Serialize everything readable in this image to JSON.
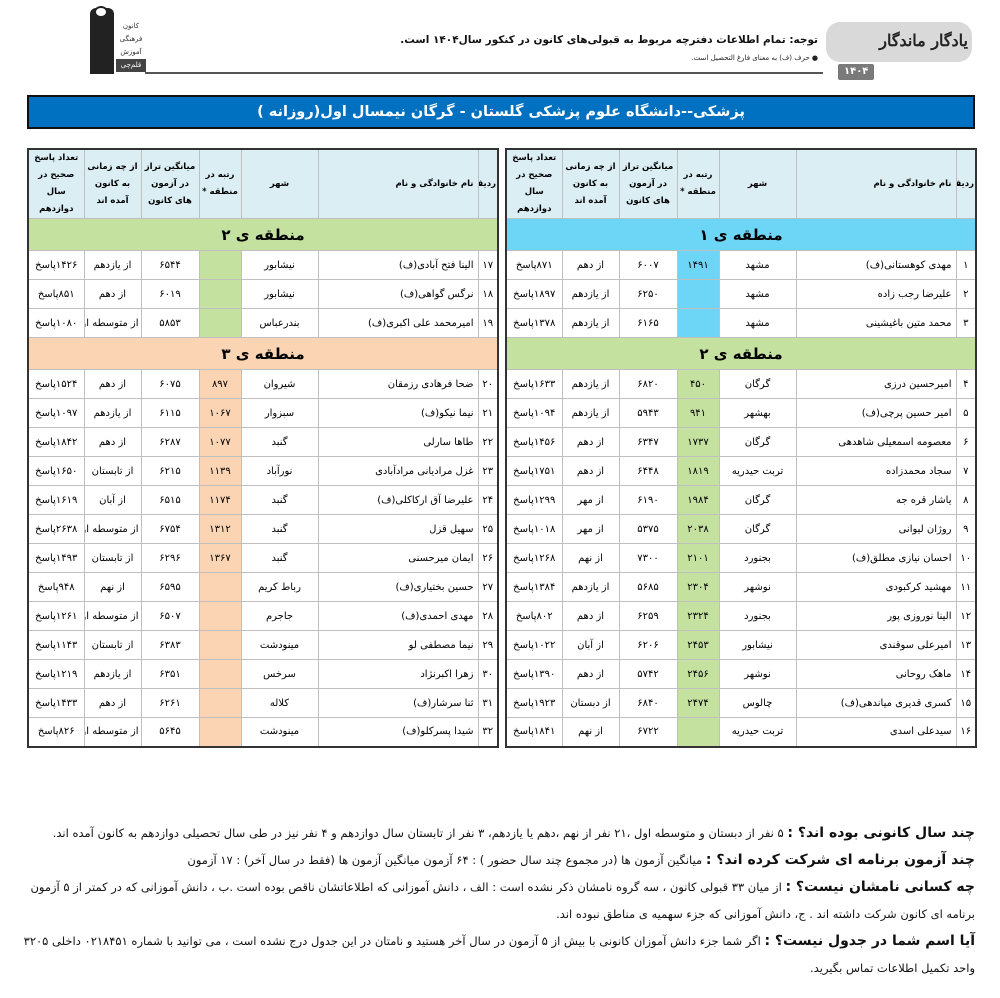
{
  "header": {
    "logo_right_text": "یادگار ماندگار",
    "logo_right_year": "۱۴۰۴",
    "notice": "توجه: تمام اطلاعات دفترچه مربوط به قبولی‌های کانون در کنکور سال۱۴۰۴ است.",
    "notice_sub": "● حرف (ف) به معنای فارغ التحصیل است.",
    "logo_left_words": [
      "کانون",
      "فرهنگی",
      "آموزش",
      "قلم‌چی"
    ]
  },
  "title": "پزشکی--دانشگاه علوم پزشکی گلستان - گرگان نیمسال اول(روزانه )",
  "columns": [
    "ردیف",
    "نام خانوادگی و نام",
    "شهر",
    "رتبه در منطقه *",
    "میانگین تراز در آزمون های کانون",
    "از چه زمانی به کانون آمده اند",
    "تعداد پاسخ صحیح در سال دوازدهم"
  ],
  "colors": {
    "zone1": "#6dd6f7",
    "zone2": "#c5e1a0",
    "zone3": "#fbd4b4",
    "header": "#dbeef4",
    "title_bar": "#0070c0"
  },
  "tables": [
    {
      "groups": [
        {
          "zone": "منطقه ی ۱",
          "color": "zone1",
          "rows": [
            [
              "۱",
              "مهدی کوهستانی(ف)",
              "مشهد",
              "۱۴۹۱",
              "۶۰۰۷",
              "از دهم",
              "۸۷۱پاسخ"
            ],
            [
              "۲",
              "علیرضا رجب زاده",
              "مشهد",
              "",
              "۶۲۵۰",
              "از یازدهم",
              "۱۸۹۷پاسخ"
            ],
            [
              "۳",
              "محمد متین باغیشینی",
              "مشهد",
              "",
              "۶۱۶۵",
              "از یازدهم",
              "۱۳۷۸پاسخ"
            ]
          ]
        },
        {
          "zone": "منطقه ی ۲",
          "color": "zone2",
          "rows": [
            [
              "۴",
              "امیرحسین درزی",
              "گرگان",
              "۴۵۰",
              "۶۸۲۰",
              "از یازدهم",
              "۱۶۳۳پاسخ"
            ],
            [
              "۵",
              "امیر حسین پرچی(ف)",
              "بهشهر",
              "۹۴۱",
              "۵۹۴۳",
              "از یازدهم",
              "۱۰۹۴پاسخ"
            ],
            [
              "۶",
              "معصومه اسمعیلی شاهدهی",
              "گرگان",
              "۱۷۳۷",
              "۶۳۴۷",
              "از دهم",
              "۱۴۵۶پاسخ"
            ],
            [
              "۷",
              "سجاد محمدزاده",
              "تربت حیدریه",
              "۱۸۱۹",
              "۶۴۴۸",
              "از دهم",
              "۱۷۵۱پاسخ"
            ],
            [
              "۸",
              "یاشار قره جه",
              "گرگان",
              "۱۹۸۴",
              "۶۱۹۰",
              "از مهر",
              "۱۲۹۹پاسخ"
            ],
            [
              "۹",
              "روژان لیوانی",
              "گرگان",
              "۲۰۳۸",
              "۵۳۷۵",
              "از مهر",
              "۱۰۱۸پاسخ"
            ],
            [
              "۱۰",
              "احسان نیازی مطلق(ف)",
              "بجنورد",
              "۲۱۰۱",
              "۷۳۰۰",
              "از نهم",
              "۱۲۶۸پاسخ"
            ],
            [
              "۱۱",
              "مهشید کرکبودی",
              "نوشهر",
              "۲۳۰۴",
              "۵۶۸۵",
              "از یازدهم",
              "۱۳۸۴پاسخ"
            ],
            [
              "۱۲",
              "الینا نوروزی پور",
              "بجنورد",
              "۲۳۲۴",
              "۶۲۵۹",
              "از دهم",
              "۸۰۲پاسخ"
            ],
            [
              "۱۳",
              "امیرعلی سوقندی",
              "نیشابور",
              "۲۴۵۳",
              "۶۲۰۶",
              "از آبان",
              "۱۰۲۲پاسخ"
            ],
            [
              "۱۴",
              "ماهک روحانی",
              "نوشهر",
              "۲۴۵۶",
              "۵۷۴۲",
              "از دهم",
              "۱۳۹۰پاسخ"
            ],
            [
              "۱۵",
              "کسری قدیری میاندهی(ف)",
              "چالوس",
              "۲۴۷۴",
              "۶۸۴۰",
              "از دبستان",
              "۱۹۲۳پاسخ"
            ],
            [
              "۱۶",
              "سیدعلی اسدی",
              "تربت حیدریه",
              "",
              "۶۷۲۲",
              "از نهم",
              "۱۸۴۱پاسخ"
            ]
          ]
        }
      ]
    },
    {
      "groups": [
        {
          "zone": "منطقه ی ۲",
          "color": "zone2",
          "rows": [
            [
              "۱۷",
              "الینا فتح آبادی(ف)",
              "نیشابور",
              "",
              "۶۵۴۴",
              "از یازدهم",
              "۱۴۲۶پاسخ"
            ],
            [
              "۱۸",
              "نرگس گواهی(ف)",
              "نیشابور",
              "",
              "۶۰۱۹",
              "از دهم",
              "۸۵۱پاسخ"
            ],
            [
              "۱۹",
              "امیرمحمد علی اکبری(ف)",
              "بندرعباس",
              "",
              "۵۸۵۳",
              "از متوسطه اول",
              "۱۰۸۰پاسخ"
            ]
          ]
        },
        {
          "zone": "منطقه ی ۳",
          "color": "zone3",
          "rows": [
            [
              "۲۰",
              "ضحا فرهادی رزمقان",
              "شیروان",
              "۸۹۷",
              "۶۰۷۵",
              "از دهم",
              "۱۵۲۴پاسخ"
            ],
            [
              "۲۱",
              "نیما نیکو(ف)",
              "سبزوار",
              "۱۰۶۷",
              "۶۱۱۵",
              "از یازدهم",
              "۱۰۹۷پاسخ"
            ],
            [
              "۲۲",
              "طاها سارلی",
              "گنبد",
              "۱۰۷۷",
              "۶۲۸۷",
              "از دهم",
              "۱۸۴۲پاسخ"
            ],
            [
              "۲۳",
              "غزل مرادیانی مرادآبادی",
              "نورآباد",
              "۱۱۳۹",
              "۶۲۱۵",
              "از تابستان",
              "۱۶۵۰پاسخ"
            ],
            [
              "۲۴",
              "علیرضا آق ارکاکلی(ف)",
              "گنبد",
              "۱۱۷۴",
              "۶۵۱۵",
              "از آبان",
              "۱۶۱۹پاسخ"
            ],
            [
              "۲۵",
              "سهیل قزل",
              "گنبد",
              "۱۳۱۲",
              "۶۷۵۴",
              "از متوسطه اول",
              "۲۶۳۸پاسخ"
            ],
            [
              "۲۶",
              "ایمان میرحسنی",
              "گنبد",
              "۱۳۶۷",
              "۶۲۹۶",
              "از تابستان",
              "۱۴۹۳پاسخ"
            ],
            [
              "۲۷",
              "حسین بختیاری(ف)",
              "رباط کریم",
              "",
              "۶۵۹۵",
              "از نهم",
              "۹۴۸پاسخ"
            ],
            [
              "۲۸",
              "مهدی احمدی(ف)",
              "جاجرم",
              "",
              "۶۵۰۷",
              "از متوسطه اول",
              "۱۲۶۱پاسخ"
            ],
            [
              "۲۹",
              "نیما مصطفی لو",
              "مینودشت",
              "",
              "۶۳۸۳",
              "از تابستان",
              "۱۱۴۳پاسخ"
            ],
            [
              "۳۰",
              "زهرا اکبرنژاد",
              "سرخس",
              "",
              "۶۳۵۱",
              "از یازدهم",
              "۱۲۱۹پاسخ"
            ],
            [
              "۳۱",
              "ثنا سرشار(ف)",
              "کلاله",
              "",
              "۶۲۶۱",
              "از دهم",
              "۱۴۳۳پاسخ"
            ],
            [
              "۳۲",
              "شیدا پسرکلو(ف)",
              "مینودشت",
              "",
              "۵۶۴۵",
              "از متوسطه اول",
              "۸۲۶پاسخ"
            ]
          ]
        }
      ]
    }
  ],
  "footer": [
    {
      "q": "چند سال کانونی بوده اند؟ :",
      "a": " ۵ نفر از دبستان و متوسطه اول ،۲۱ نفر از نهم ،دهم یا یازدهم، ۳ نفر از تابستان سال دوازدهم و ۴ نفر نیز در طی سال تحصیلی دوازدهم به کانون آمده اند."
    },
    {
      "q": "چند آزمون برنامه ای شرکت کرده اند؟ :",
      "a": " میانگین آزمون ها (در مجموع چند سال حضور ) : ۶۴ آزمون     میانگین آزمون ها (فقط در سال آخر) : ۱۷ آزمون"
    },
    {
      "q": "چه کسانی نامشان نیست؟ :",
      "a": " از میان ۳۳ قبولی کانون ، سه گروه نامشان ذکر نشده است : الف ، دانش آموزانی که اطلاعاتشان ناقص بوده است .ب ، دانش آموزانی که در کمتر از ۵ آزمون برنامه ای کانون شرکت داشته اند . ج، دانش آموزانی که جزء سهمیه ی مناطق نبوده اند."
    },
    {
      "q": "آیا اسم شما در جدول نیست؟ :",
      "a": " اگر شما جزء دانش آموزان کانونی با بیش از ۵ آزمون در سال آخر هستید و نامتان در این جدول درج نشده است ، می توانید با شماره ۰۲۱۸۴۵۱ داخلی ۳۲۰۵ واحد تکمیل اطلاعات تماس بگیرید."
    }
  ]
}
